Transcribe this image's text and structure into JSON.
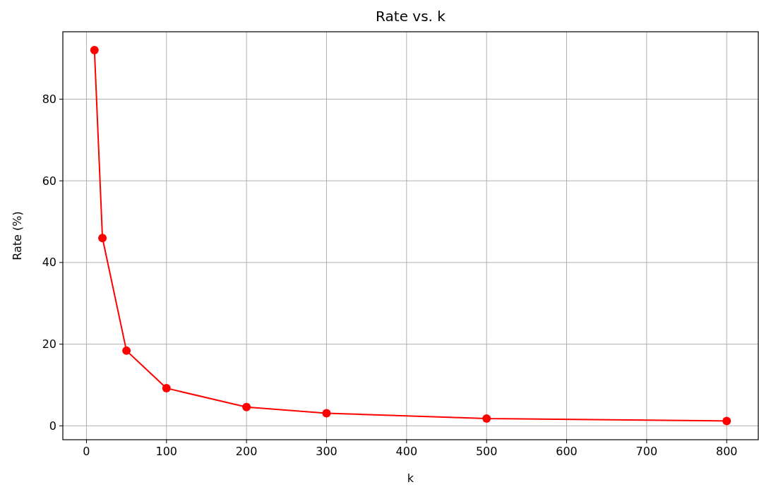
{
  "chart_data": {
    "type": "line",
    "title": "Rate vs. k",
    "xlabel": "k",
    "ylabel": "Rate (%)",
    "x": [
      10,
      20,
      50,
      100,
      200,
      300,
      500,
      800
    ],
    "series": [
      {
        "color": "#ff0000",
        "values": [
          92,
          46,
          18.4,
          9.2,
          4.6,
          3.1,
          1.8,
          1.2
        ]
      }
    ],
    "xlim": [
      -29.5,
      839.5
    ],
    "ylim": [
      -3.4,
      96.5
    ],
    "xticks": [
      0,
      100,
      200,
      300,
      400,
      500,
      600,
      700,
      800
    ],
    "yticks": [
      0,
      20,
      40,
      60,
      80
    ],
    "grid": true,
    "marker": "circle",
    "line_style": "solid"
  }
}
